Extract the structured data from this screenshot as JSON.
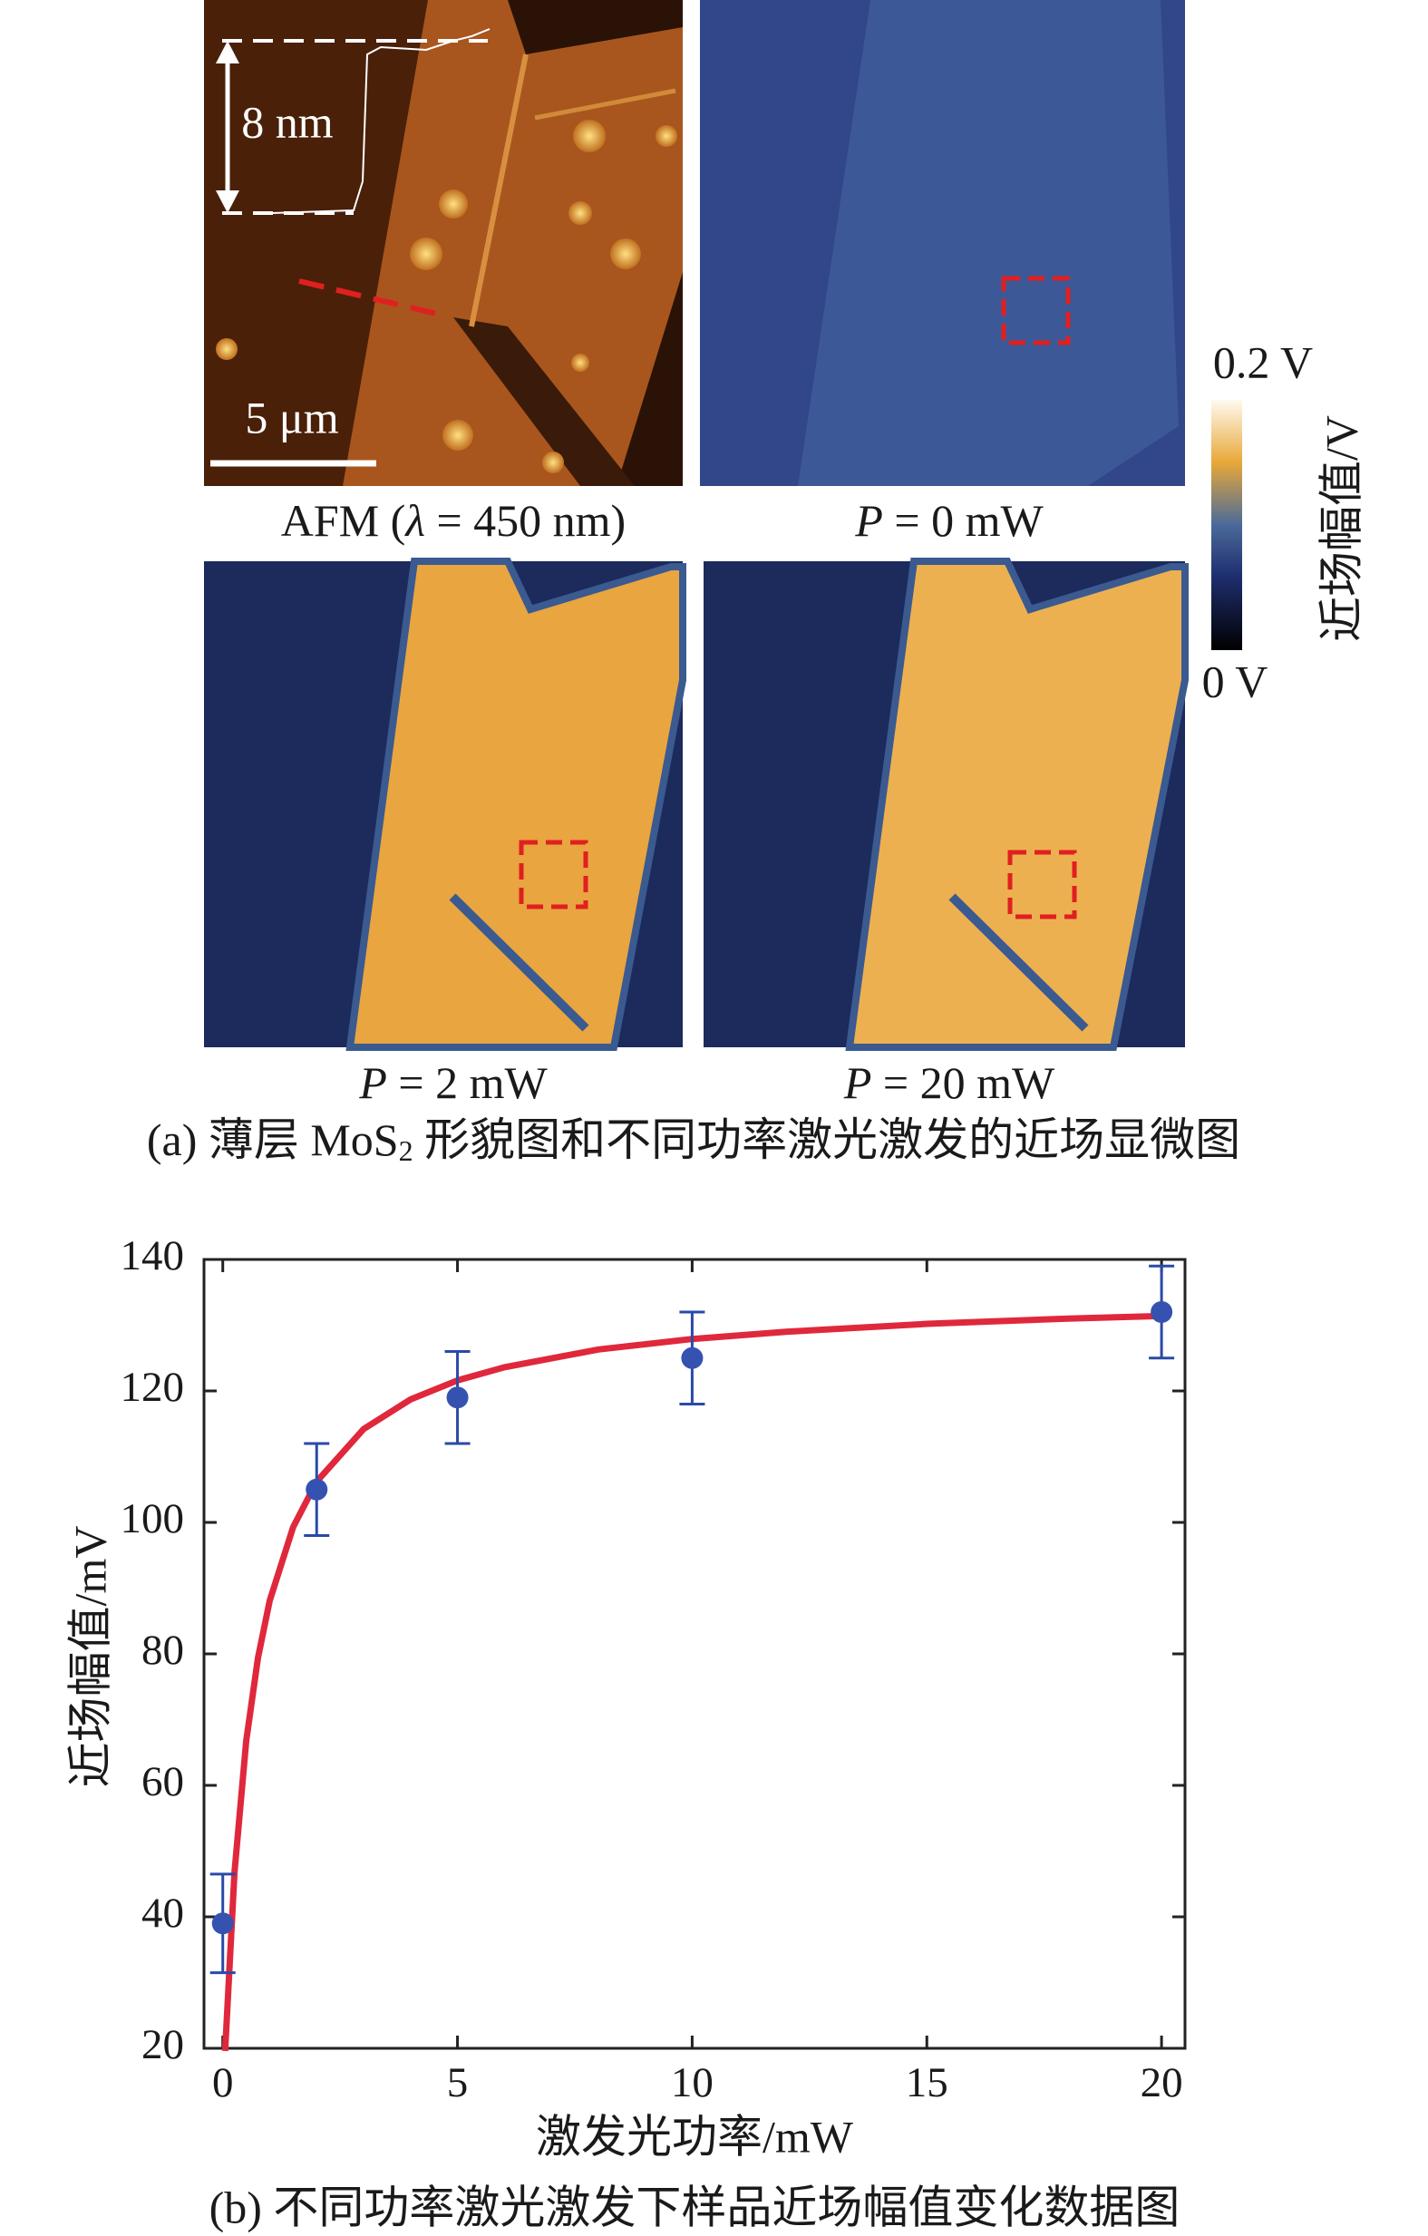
{
  "panel_a": {
    "height_label": "8 nm",
    "scalebar_label": "5 μm",
    "image_labels": [
      [
        "AFM (",
        "λ",
        " = 450 nm)"
      ],
      [
        "P",
        " = 0 mW"
      ],
      [
        "P",
        " = 2 mW"
      ],
      [
        "P",
        " = 20 mW"
      ]
    ],
    "colorbar": {
      "max_label": "0.2 V",
      "min_label": "0 V",
      "title": "近场幅值/V"
    },
    "caption": [
      "(a) 薄层 MoS",
      "2",
      " 形貌图和不同功率激光激发的近场显微图"
    ]
  },
  "chart_data": {
    "type": "scatter",
    "x_label": "激发光功率/mW",
    "y_label": "近场幅值/mV",
    "caption": "(b) 不同功率激光激发下样品近场幅值变化数据图",
    "x": [
      0,
      2,
      5,
      10,
      20
    ],
    "values": [
      39,
      105,
      119,
      125,
      132
    ],
    "errors": [
      7.5,
      7,
      7,
      7,
      7
    ],
    "color": "#3552b0",
    "error_color": "#2a4aa8",
    "fit": {
      "color": "#e0283c",
      "x": [
        0.05,
        0.25,
        0.5,
        0.75,
        1,
        1.5,
        2,
        3,
        4,
        5,
        6,
        8,
        10,
        12,
        15,
        18,
        20
      ],
      "values": [
        19.6,
        46.8,
        66.8,
        79.4,
        88.1,
        99.3,
        106.2,
        114.2,
        118.7,
        121.6,
        123.6,
        126.3,
        127.9,
        129.0,
        130.2,
        131.0,
        131.4
      ]
    },
    "xlim": [
      -0.4,
      20.5
    ],
    "ylim": [
      20,
      140
    ],
    "xticks": [
      0,
      5,
      10,
      15,
      20
    ],
    "yticks": [
      20,
      40,
      60,
      80,
      100,
      120,
      140
    ]
  }
}
